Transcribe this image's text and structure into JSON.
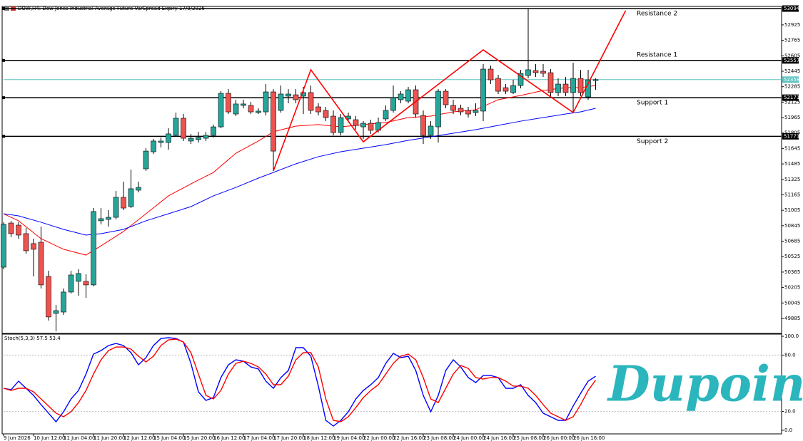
{
  "header": "DOW,H4: Dow Jones Industrial Average Future VarSpread Expiry 17/9/2026",
  "watermark": "Dupoin",
  "chart_data": [
    {
      "type": "candlestick",
      "categories": [
        "9 Jun 2026",
        null,
        null,
        null,
        "10 Jun 12:00",
        null,
        null,
        null,
        "11 Jun 04:00",
        null,
        null,
        null,
        "11 Jun 20:00",
        null,
        null,
        null,
        "12 Jun 12:00",
        null,
        null,
        null,
        "15 Jun 04:00",
        null,
        null,
        null,
        "15 Jun 20:00",
        null,
        null,
        null,
        "16 Jun 12:00",
        null,
        null,
        null,
        "17 Jun 04:00",
        null,
        null,
        null,
        "17 Jun 20:00",
        null,
        null,
        null,
        "18 Jun 12:00",
        null,
        null,
        null,
        "19 Jun 04:00",
        null,
        null,
        null,
        "22 Jun 00:00",
        null,
        null,
        null,
        "22 Jun 16:00",
        null,
        null,
        null,
        "23 Jun 08:00",
        null,
        null,
        null,
        "24 Jun 00:00",
        null,
        null,
        null,
        "24 Jun 16:00",
        null,
        null,
        null,
        "25 Jun 08:00",
        null,
        null,
        null,
        "26 Jun 00:00",
        null,
        null,
        null,
        "26 Jun 16:00",
        null,
        null,
        null
      ],
      "open": [
        50416,
        50873,
        50851,
        50763,
        50660,
        50674,
        50320,
        49937,
        49951,
        50158,
        50269,
        50269,
        50232,
        50896,
        50910,
        50932,
        51139,
        51043,
        51213,
        51434,
        51611,
        51707,
        51707,
        51781,
        51958,
        51722,
        51737,
        51751,
        51781,
        51869,
        52216,
        52002,
        52091,
        52091,
        52017,
        52024,
        52231,
        52039,
        52187,
        52201,
        52187,
        52224,
        52076,
        52039,
        51980,
        51810,
        51951,
        51943,
        51869,
        51906,
        51833,
        51951,
        52039,
        52150,
        52135,
        52253,
        51987,
        51781,
        51869,
        52238,
        52091,
        52061,
        52039,
        52017,
        52032,
        52467,
        52371,
        52275,
        52224,
        52297,
        52401,
        52452,
        52445,
        52430,
        52224,
        52312,
        52224,
        52371,
        52179,
        52349
      ],
      "high": [
        50881,
        50896,
        50881,
        50822,
        50711,
        50836,
        50379,
        50025,
        50195,
        50379,
        50394,
        50342,
        51028,
        51028,
        51006,
        51205,
        51301,
        51427,
        51301,
        51648,
        51744,
        51759,
        51855,
        52017,
        52002,
        51796,
        51818,
        51818,
        51892,
        52238,
        52260,
        52150,
        52150,
        52128,
        52061,
        52312,
        52260,
        52297,
        52260,
        52260,
        52283,
        52297,
        52113,
        52076,
        52039,
        52002,
        52017,
        51980,
        51928,
        51943,
        51965,
        52091,
        52297,
        52238,
        52283,
        52297,
        52039,
        51928,
        52260,
        52260,
        52150,
        52098,
        52076,
        52113,
        52519,
        52504,
        52408,
        52312,
        52356,
        52460,
        53094,
        52519,
        52519,
        52467,
        52371,
        52386,
        52533,
        52460,
        52460,
        52371
      ],
      "low": [
        50394,
        50726,
        50711,
        50556,
        50320,
        50195,
        49863,
        49752,
        49922,
        50143,
        50121,
        50099,
        50217,
        50859,
        50836,
        50910,
        51006,
        51028,
        51191,
        51412,
        51589,
        51655,
        51633,
        51766,
        51722,
        51692,
        51707,
        51722,
        51759,
        51855,
        52002,
        51980,
        52061,
        52002,
        52002,
        51987,
        51412,
        52017,
        52113,
        52113,
        52002,
        52002,
        51987,
        51928,
        51781,
        51781,
        51914,
        51840,
        51744,
        51796,
        51810,
        51928,
        52017,
        52113,
        52113,
        51965,
        51692,
        51744,
        51707,
        52061,
        52002,
        51987,
        51965,
        51980,
        51928,
        52312,
        52209,
        52209,
        52209,
        52268,
        52371,
        52386,
        52386,
        52187,
        52187,
        52187,
        52017,
        52187,
        52150,
        52253
      ],
      "close": [
        50859,
        50763,
        50748,
        50586,
        50601,
        50232,
        49900,
        49966,
        50158,
        50335,
        50350,
        50232,
        50992,
        50918,
        50932,
        51139,
        51028,
        51228,
        51242,
        51618,
        51722,
        51722,
        51796,
        51958,
        51751,
        51751,
        51759,
        51781,
        51869,
        52216,
        52024,
        52106,
        52106,
        52024,
        52032,
        52231,
        51618,
        52209,
        52209,
        52150,
        52224,
        52039,
        52024,
        51965,
        51810,
        51965,
        51980,
        51884,
        51906,
        51833,
        51914,
        52039,
        52172,
        52209,
        52253,
        52002,
        51781,
        51877,
        52238,
        52098,
        52039,
        52024,
        52002,
        52039,
        52467,
        52356,
        52238,
        52238,
        52297,
        52423,
        52460,
        52430,
        52423,
        52224,
        52312,
        52224,
        52371,
        52224,
        52356,
        52358
      ],
      "up_color": "#26a69a",
      "down_color": "#ef5350",
      "ylim": [
        49737,
        53109
      ],
      "yticks": [
        49885,
        50045,
        50205,
        50365,
        50525,
        50685,
        50845,
        51005,
        51165,
        51325,
        51485,
        51645,
        51805,
        51965,
        52125,
        52285,
        52445,
        52605,
        52765,
        52925
      ],
      "overlays": [
        {
          "color": "#ff0000",
          "x": [
            0,
            2,
            5,
            8,
            11,
            13,
            16,
            19,
            22,
            25,
            28,
            31,
            34,
            36,
            39,
            42,
            45,
            48,
            51,
            54,
            57,
            60,
            63,
            66,
            69,
            72,
            75,
            77,
            79
          ],
          "values": [
            50969,
            50896,
            50711,
            50601,
            50541,
            50637,
            50785,
            50969,
            51154,
            51279,
            51397,
            51596,
            51722,
            51818,
            51877,
            51892,
            51869,
            51892,
            51914,
            51965,
            51980,
            52024,
            52046,
            52150,
            52194,
            52246,
            52275,
            52275,
            52297
          ]
        },
        {
          "color": "#0000ff",
          "x": [
            0,
            2,
            5,
            8,
            11,
            13,
            16,
            19,
            22,
            25,
            28,
            31,
            34,
            36,
            39,
            42,
            45,
            48,
            51,
            54,
            57,
            60,
            63,
            66,
            69,
            72,
            75,
            77,
            79
          ],
          "values": [
            50969,
            50947,
            50881,
            50807,
            50748,
            50763,
            50807,
            50896,
            50969,
            51043,
            51154,
            51242,
            51338,
            51397,
            51486,
            51560,
            51611,
            51648,
            51685,
            51729,
            51766,
            51803,
            51840,
            51884,
            51928,
            51965,
            52002,
            52024,
            52061
          ]
        }
      ],
      "pattern": {
        "color": "#ff0000",
        "x": [
          36,
          41,
          48,
          64,
          76,
          83
        ],
        "values": [
          51412,
          52460,
          51714,
          52666,
          52017,
          53072
        ]
      },
      "levels": [
        {
          "name": "Resistance 2",
          "value": 53094
        },
        {
          "name": "Resistance 1",
          "value": 52557
        },
        {
          "name": "Support 1",
          "value": 52171
        },
        {
          "name": "Support 2",
          "value": 51771
        }
      ],
      "level_color": "#000000",
      "last_price": 52358,
      "last_price_color": "#5fc4c0"
    },
    {
      "type": "line",
      "title": "Stoch(5,3,3) 57.5 53.4",
      "series": [
        {
          "color": "#0000ff",
          "values": [
            44.7,
            43.2,
            52.3,
            44.7,
            37.1,
            27.3,
            18.2,
            9.1,
            19.7,
            33.3,
            42.4,
            59.8,
            81.1,
            84.8,
            90.2,
            92.4,
            90.2,
            82.6,
            69.7,
            77.3,
            90.2,
            97.7,
            98.5,
            97.7,
            93.9,
            71.2,
            40.9,
            31.8,
            34.8,
            56.1,
            69.7,
            75.0,
            73.5,
            67.4,
            65.2,
            52.3,
            44.7,
            56.1,
            63.6,
            87.9,
            87.9,
            78.8,
            47.0,
            10.6,
            4.5,
            10.6,
            19.7,
            33.3,
            42.4,
            48.5,
            56.1,
            71.2,
            81.8,
            77.3,
            78.8,
            63.6,
            37.1,
            19.7,
            37.1,
            63.6,
            75.0,
            67.4,
            56.1,
            50.8,
            58.3,
            58.3,
            56.1,
            44.7,
            44.7,
            48.5,
            37.1,
            29.5,
            18.2,
            14.4,
            10.6,
            10.6,
            25.8,
            39.4,
            52.3,
            57.5
          ]
        },
        {
          "color": "#ff0000",
          "values": [
            44.7,
            42.4,
            44.7,
            44.7,
            40.9,
            33.3,
            25.8,
            18.2,
            14.4,
            19.7,
            29.5,
            42.4,
            59.8,
            75.0,
            84.8,
            88.6,
            88.6,
            86.4,
            78.8,
            72.7,
            78.8,
            90.2,
            96.2,
            97.0,
            93.9,
            82.6,
            59.8,
            37.1,
            33.3,
            42.4,
            59.8,
            71.2,
            73.5,
            71.2,
            67.4,
            59.8,
            48.5,
            48.5,
            57.6,
            75.0,
            82.6,
            82.6,
            67.4,
            33.3,
            10.6,
            9.1,
            14.4,
            24.2,
            34.8,
            42.4,
            48.5,
            59.8,
            71.2,
            78.8,
            81.1,
            75.0,
            56.1,
            33.3,
            29.5,
            44.7,
            59.8,
            68.9,
            65.9,
            56.1,
            54.5,
            56.1,
            56.1,
            52.3,
            47.0,
            47.0,
            44.7,
            37.1,
            27.3,
            18.2,
            14.4,
            10.6,
            14.4,
            27.3,
            42.4,
            53.4
          ]
        }
      ],
      "ylim": [
        -3.8,
        102.3
      ],
      "yticks": [
        {
          "value": 0,
          "label": "0.0"
        },
        {
          "value": 20,
          "label": "20.0"
        },
        {
          "value": 80,
          "label": "80.0"
        },
        {
          "value": 100,
          "label": "100.0"
        }
      ],
      "levels": [
        20,
        80
      ]
    }
  ]
}
